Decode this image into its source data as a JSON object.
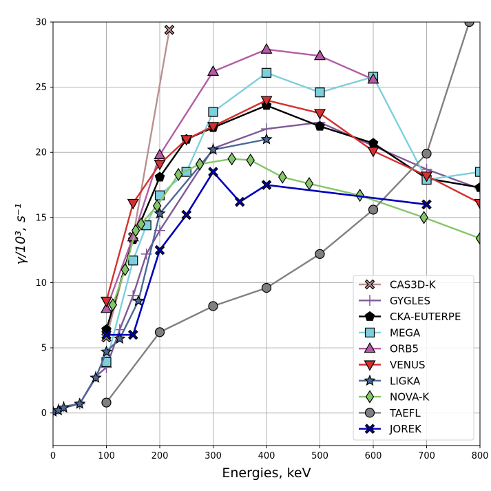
{
  "chart_data": {
    "type": "line",
    "title": "",
    "xlabel": "Energies, keV",
    "ylabel": "γ/10³, s⁻¹",
    "xlim": [
      0,
      800
    ],
    "ylim": [
      -2.5,
      30
    ],
    "xticks": [
      "0",
      "100",
      "200",
      "300",
      "400",
      "500",
      "600",
      "700",
      "800"
    ],
    "yticks": [
      "0",
      "5",
      "10",
      "15",
      "20",
      "25",
      "30"
    ],
    "grid": true,
    "legend_position": "lower-right",
    "series": [
      {
        "name": "CAS3D-K",
        "color": "#bc8f8f",
        "marker": "X",
        "x": [
          100,
          150,
          218
        ],
        "y": [
          5.8,
          13.5,
          29.4
        ]
      },
      {
        "name": "GYGLES",
        "color": "#7f5896",
        "marker": "+",
        "x": [
          0,
          10,
          20,
          50,
          80,
          100,
          125,
          150,
          175,
          200,
          300,
          400,
          500,
          700,
          800
        ],
        "y": [
          0.1,
          0.3,
          0.5,
          0.7,
          2.8,
          3.5,
          6.4,
          9.0,
          12.2,
          14.0,
          20.3,
          21.8,
          22.3,
          18.7,
          17.2
        ]
      },
      {
        "name": "CKA-EUTERPE",
        "color": "#000000",
        "marker": "pentagon",
        "x": [
          100,
          150,
          200,
          250,
          300,
          400,
          500,
          600,
          700,
          800
        ],
        "y": [
          6.4,
          13.3,
          18.1,
          21.0,
          21.9,
          23.6,
          22.0,
          20.7,
          18.0,
          17.3
        ]
      },
      {
        "name": "MEGA",
        "color": "#7ecfdc",
        "marker": "square",
        "x": [
          100,
          150,
          175,
          200,
          250,
          300,
          400,
          500,
          600,
          700,
          800
        ],
        "y": [
          3.9,
          11.7,
          14.4,
          16.7,
          18.5,
          23.1,
          26.1,
          24.6,
          25.8,
          17.9,
          18.5
        ]
      },
      {
        "name": "ORB5",
        "color": "#b35ca5",
        "marker": "triangle-up",
        "x": [
          100,
          150,
          200,
          300,
          400,
          500,
          600
        ],
        "y": [
          8.0,
          13.5,
          19.8,
          26.2,
          27.9,
          27.4,
          25.6
        ]
      },
      {
        "name": "VENUS",
        "color": "#d62f2f",
        "marker": "triangle-down",
        "x": [
          100,
          150,
          200,
          250,
          300,
          400,
          500,
          600,
          700,
          800
        ],
        "y": [
          8.6,
          16.1,
          19.1,
          21.0,
          22.0,
          24.0,
          23.0,
          20.1,
          18.2,
          16.1
        ]
      },
      {
        "name": "LIGKA",
        "color": "#4a6898",
        "marker": "star",
        "x": [
          0,
          10,
          20,
          50,
          80,
          100,
          125,
          160,
          200,
          300,
          400
        ],
        "y": [
          0.1,
          0.2,
          0.4,
          0.7,
          2.7,
          4.7,
          5.7,
          8.6,
          15.3,
          20.2,
          21.0
        ]
      },
      {
        "name": "NOVA-K",
        "color": "#86c66b",
        "marker": "diamond",
        "x": [
          112,
          135,
          155,
          165,
          195,
          235,
          275,
          335,
          370,
          430,
          480,
          575,
          695,
          800
        ],
        "y": [
          8.3,
          11.0,
          14.0,
          14.5,
          15.9,
          18.3,
          19.1,
          19.5,
          19.4,
          18.1,
          17.6,
          16.7,
          15.0,
          13.4
        ]
      },
      {
        "name": "TAEFL",
        "color": "#808080",
        "marker": "circle",
        "x": [
          100,
          200,
          300,
          400,
          500,
          600,
          700,
          780
        ],
        "y": [
          0.8,
          6.2,
          8.2,
          9.6,
          12.2,
          15.6,
          19.9,
          30.0
        ]
      },
      {
        "name": "JOREK",
        "color": "#0000bb",
        "marker": "X",
        "x": [
          100,
          150,
          200,
          250,
          300,
          350,
          400,
          700
        ],
        "y": [
          6.0,
          6.0,
          12.5,
          15.2,
          18.5,
          16.2,
          17.5,
          16.0
        ]
      }
    ]
  }
}
